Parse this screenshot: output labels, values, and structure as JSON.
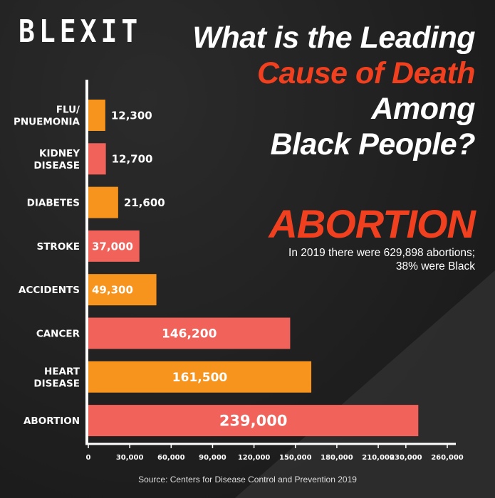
{
  "logo": "BLEXIT",
  "title": {
    "line1": "What is the Leading",
    "line2_highlight": "Cause of Death",
    "line2_rest": " Among",
    "line3": "Black People?"
  },
  "highlight_word": "ABORTION",
  "note": "In 2019 there were 629,898 abortions; 38% were Black",
  "source": "Source: Centers for Disease Control and Prevention 2019",
  "colors": {
    "red": "#f0625a",
    "orange": "#f7941d",
    "accent": "#f0401f",
    "text": "#ffffff",
    "background": "#1f1f1f"
  },
  "chart_data": {
    "type": "bar",
    "orientation": "horizontal",
    "categories": [
      [
        "FLU/",
        "PNUEMONIA"
      ],
      [
        "KIDNEY",
        "DISEASE"
      ],
      [
        "DIABETES"
      ],
      [
        "STROKE"
      ],
      [
        "ACCIDENTS"
      ],
      [
        "CANCER"
      ],
      [
        "HEART",
        "DISEASE"
      ],
      [
        "ABORTION"
      ]
    ],
    "values": [
      12300,
      12700,
      21600,
      37000,
      49300,
      146200,
      161500,
      239000
    ],
    "value_labels": [
      "12,300",
      "12,700",
      "21,600",
      "37,000",
      "49,300",
      "146,200",
      "161,500",
      "239,000"
    ],
    "bar_colors": [
      "orange",
      "red",
      "orange",
      "red",
      "orange",
      "red",
      "orange",
      "red"
    ],
    "xlim": [
      0,
      260000
    ],
    "x_ticks": [
      0,
      30000,
      60000,
      90000,
      120000,
      150000,
      180000,
      210000,
      230000,
      260000
    ],
    "x_tick_labels": [
      "0",
      "30,000",
      "60,000",
      "90,000",
      "120,000",
      "150,000",
      "180,000",
      "210,000",
      "230,000",
      "260,000"
    ],
    "grid": false,
    "legend": "none"
  }
}
